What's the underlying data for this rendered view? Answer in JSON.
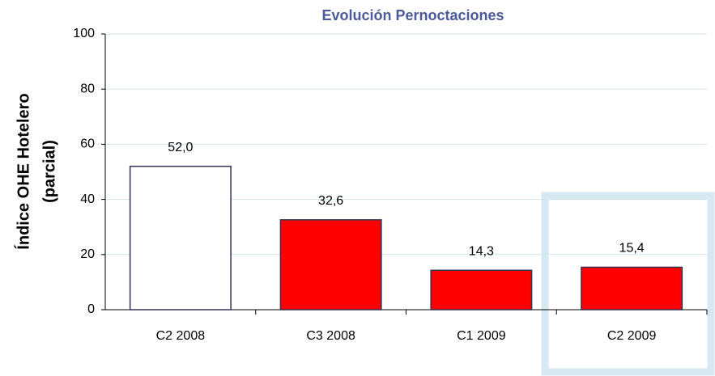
{
  "chart_data": {
    "type": "bar",
    "title": "Evolución Pernoctaciones",
    "y_label": [
      "Índice OHE Hotelero",
      "(parcial)"
    ],
    "categories": [
      "C2 2008",
      "C3 2008",
      "C1 2009",
      "C2 2009"
    ],
    "values": [
      52.0,
      32.6,
      14.3,
      15.4
    ],
    "value_labels": [
      "52,0",
      "32,6",
      "14,3",
      "15,4"
    ],
    "colors": [
      "#ffffff",
      "#ff0000",
      "#ff0000",
      "#ff0000"
    ],
    "edge_color": "#333355",
    "ylim": [
      0,
      100
    ],
    "yticks": [
      0,
      20,
      40,
      60,
      80,
      100
    ],
    "grid": true
  }
}
